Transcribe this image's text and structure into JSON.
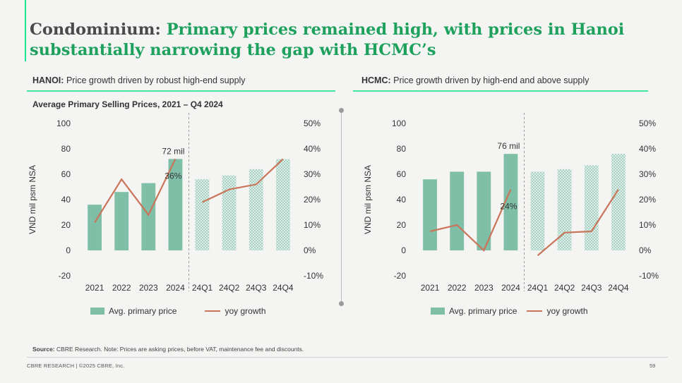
{
  "header": {
    "title_lead": "Condominium:",
    "title_rest": "Primary prices remained high, with prices in Hanoi substantially narrowing the gap with HCMC’s"
  },
  "hanoi": {
    "heading_bold": "HANOI:",
    "heading_text": "Price growth driven by robust high-end supply",
    "chart_title": "Average Primary Selling Prices, 2021 – Q4 2024"
  },
  "hcmc": {
    "heading_bold": "HCMC:",
    "heading_text": "Price growth driven by high-end and above supply"
  },
  "legend": {
    "bar_label": "Avg. primary price",
    "line_label": "yoy growth"
  },
  "source": {
    "label": "Source:",
    "text": "CBRE Research. Note: Prices are asking prices, before VAT, maintenance fee and discounts."
  },
  "footer": {
    "text": "CBRE RESEARCH | ©2025 CBRE, Inc.",
    "page": "59"
  },
  "colors": {
    "bar_solid": "#7fbfa8",
    "bar_pattern": "#7fbfa8",
    "line": "#c9755a",
    "accent": "#17e88f"
  },
  "chart_data": [
    {
      "id": "hanoi",
      "type": "bar",
      "categories": [
        "2021",
        "2022",
        "2023",
        "2024",
        "24Q1",
        "24Q2",
        "24Q3",
        "24Q4"
      ],
      "bar_styles": [
        "solid",
        "solid",
        "solid",
        "solid",
        "pattern",
        "pattern",
        "pattern",
        "pattern"
      ],
      "series": [
        {
          "name": "Avg. primary price",
          "axis": "left",
          "type": "bar",
          "values": [
            36,
            46,
            53,
            72,
            56,
            59,
            64,
            72
          ]
        },
        {
          "name": "yoy growth",
          "axis": "right",
          "type": "line",
          "values": [
            11,
            28,
            14,
            36,
            19,
            24,
            26,
            36
          ]
        }
      ],
      "ylabel": "VND mil psm NSA",
      "ylim": [
        -20,
        100
      ],
      "yticks": [
        "100",
        "80",
        "60",
        "40",
        "20",
        "0",
        "-20"
      ],
      "y2lim": [
        -10,
        50
      ],
      "y2ticks": [
        "50%",
        "40%",
        "30%",
        "20%",
        "10%",
        "0%",
        "-10%"
      ],
      "annotations": [
        {
          "index": 3,
          "series": "Avg. primary price",
          "text": "72 mil"
        },
        {
          "index": 3,
          "series": "yoy growth",
          "text": "36%"
        }
      ],
      "legend": "bottom",
      "grid": false
    },
    {
      "id": "hcmc",
      "type": "bar",
      "categories": [
        "2021",
        "2022",
        "2023",
        "2024",
        "24Q1",
        "24Q2",
        "24Q3",
        "24Q4"
      ],
      "bar_styles": [
        "solid",
        "solid",
        "solid",
        "solid",
        "pattern",
        "pattern",
        "pattern",
        "pattern"
      ],
      "series": [
        {
          "name": "Avg. primary price",
          "axis": "left",
          "type": "bar",
          "values": [
            56,
            62,
            62,
            76,
            62,
            64,
            67,
            76
          ]
        },
        {
          "name": "yoy growth",
          "axis": "right",
          "type": "line",
          "values": [
            7.5,
            10,
            0,
            24,
            -2,
            7,
            7.5,
            24
          ]
        }
      ],
      "ylabel": "VND mil psm NSA",
      "ylim": [
        -20,
        100
      ],
      "yticks": [
        "100",
        "80",
        "60",
        "40",
        "20",
        "0",
        "-20"
      ],
      "y2lim": [
        -10,
        50
      ],
      "y2ticks": [
        "50%",
        "40%",
        "30%",
        "20%",
        "10%",
        "0%",
        "-10%"
      ],
      "annotations": [
        {
          "index": 3,
          "series": "Avg. primary price",
          "text": "76 mil"
        },
        {
          "index": 3,
          "series": "yoy growth",
          "text": "24%"
        }
      ],
      "legend": "bottom",
      "grid": false
    }
  ]
}
